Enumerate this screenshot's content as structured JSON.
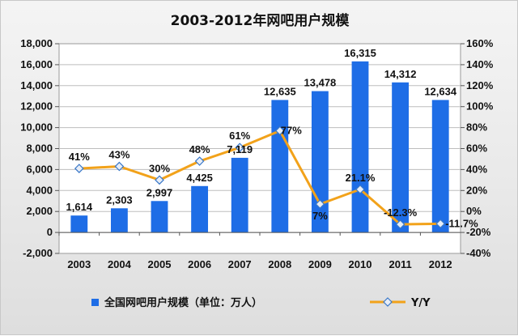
{
  "colors": {
    "bar": "#1e6de6",
    "line": "#f2a21a",
    "marker": "#e8eef7",
    "grid": "#bdbdbd",
    "axis": "#555555"
  },
  "chart_data": {
    "type": "bar",
    "title": "2003-2012年网吧用户规模",
    "categories": [
      "2003",
      "2004",
      "2005",
      "2006",
      "2007",
      "2008",
      "2009",
      "2010",
      "2011",
      "2012"
    ],
    "series": [
      {
        "name": "全国网吧用户规模（单位：万人）",
        "type": "bar",
        "axis": "left",
        "values": [
          1614,
          2303,
          2997,
          4425,
          7119,
          12635,
          13478,
          16315,
          14312,
          12634
        ],
        "labels": [
          "1,614",
          "2,303",
          "2,997",
          "4,425",
          "7,119",
          "12,635",
          "13,478",
          "16,315",
          "14,312",
          "12,634"
        ]
      },
      {
        "name": "Y/Y",
        "type": "line",
        "axis": "right",
        "values": [
          41,
          43,
          30,
          48,
          61,
          77,
          7,
          21.1,
          -12.3,
          -11.7
        ],
        "labels": [
          "41%",
          "43%",
          "30%",
          "48%",
          "61%",
          "77%",
          "7%",
          "21.1%",
          "-12.3%",
          "-11.7%"
        ]
      }
    ],
    "ylim": [
      -2000,
      18000
    ],
    "y_ticks": [
      "-2,000",
      "0",
      "2,000",
      "4,000",
      "6,000",
      "8,000",
      "10,000",
      "12,000",
      "14,000",
      "16,000",
      "18,000"
    ],
    "y2lim": [
      -40,
      160
    ],
    "y2_ticks": [
      "-40%",
      "-20%",
      "0%",
      "20%",
      "40%",
      "60%",
      "80%",
      "100%",
      "120%",
      "140%",
      "160%"
    ],
    "grid": "horizontal",
    "legend": "bottom"
  }
}
